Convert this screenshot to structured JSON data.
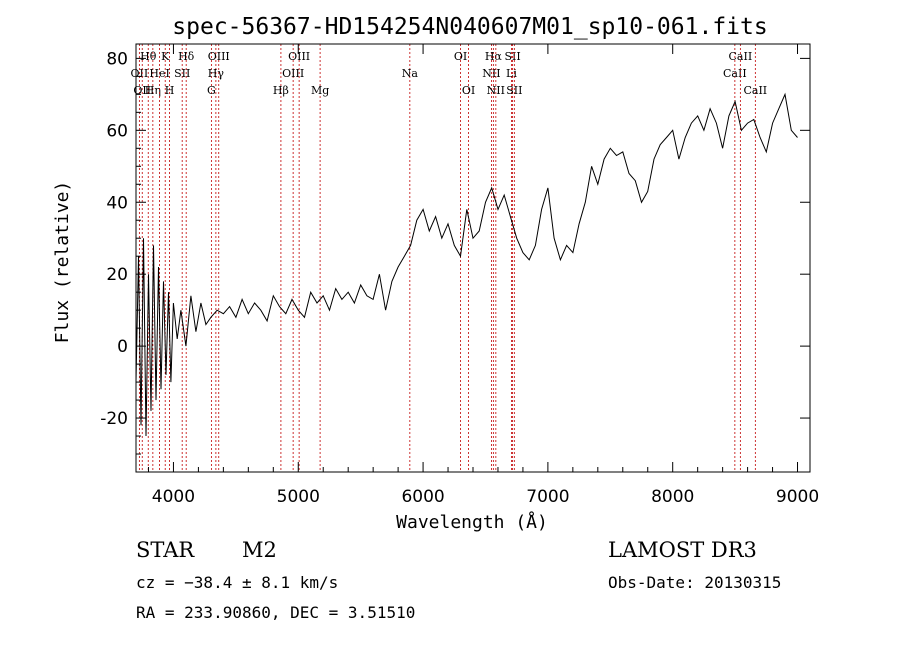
{
  "chart_data": {
    "type": "line",
    "title": "spec-56367-HD154254N040607M01_sp10-061.fits",
    "xlabel": "Wavelength (Å)",
    "ylabel": "Flux (relative)",
    "xlim": [
      3700,
      9100
    ],
    "ylim": [
      -35,
      84
    ],
    "xticks": [
      4000,
      5000,
      6000,
      7000,
      8000,
      9000
    ],
    "yticks": [
      -20,
      0,
      20,
      40,
      60,
      80
    ],
    "grid": false,
    "line_color": "#000000",
    "marker_color": "#c00000",
    "series": [
      {
        "x": [
          3700,
          3720,
          3740,
          3760,
          3780,
          3800,
          3820,
          3840,
          3860,
          3880,
          3900,
          3920,
          3940,
          3960,
          3980,
          4000,
          4030,
          4060,
          4100,
          4140,
          4180,
          4220,
          4260,
          4300,
          4350,
          4400,
          4450,
          4500,
          4550,
          4600,
          4650,
          4700,
          4750,
          4800,
          4850,
          4900,
          4950,
          5000,
          5050,
          5100,
          5150,
          5200,
          5250,
          5300,
          5350,
          5400,
          5450,
          5500,
          5550,
          5600,
          5650,
          5700,
          5750,
          5800,
          5850,
          5900,
          5950,
          6000,
          6050,
          6100,
          6150,
          6200,
          6250,
          6300,
          6350,
          6400,
          6450,
          6500,
          6550,
          6600,
          6650,
          6700,
          6750,
          6800,
          6850,
          6900,
          6950,
          7000,
          7050,
          7100,
          7150,
          7200,
          7250,
          7300,
          7350,
          7400,
          7450,
          7500,
          7550,
          7600,
          7650,
          7700,
          7750,
          7800,
          7850,
          7900,
          7950,
          8000,
          8050,
          8100,
          8150,
          8200,
          8250,
          8300,
          8350,
          8400,
          8450,
          8500,
          8550,
          8600,
          8650,
          8700,
          8750,
          8800,
          8850,
          8900,
          8950,
          9000
        ],
        "y": [
          -10,
          25,
          -22,
          30,
          -25,
          20,
          -18,
          28,
          -15,
          22,
          -12,
          18,
          -8,
          15,
          -10,
          12,
          2,
          10,
          0,
          14,
          4,
          12,
          6,
          8,
          10,
          9,
          11,
          8,
          13,
          9,
          12,
          10,
          7,
          14,
          11,
          9,
          13,
          10,
          8,
          15,
          12,
          14,
          10,
          16,
          13,
          15,
          12,
          17,
          14,
          13,
          20,
          10,
          18,
          22,
          25,
          28,
          35,
          38,
          32,
          36,
          30,
          34,
          28,
          25,
          38,
          30,
          32,
          40,
          44,
          38,
          42,
          36,
          30,
          26,
          24,
          28,
          38,
          44,
          30,
          24,
          28,
          26,
          34,
          40,
          50,
          45,
          52,
          55,
          53,
          54,
          48,
          46,
          40,
          43,
          52,
          56,
          58,
          60,
          52,
          58,
          62,
          64,
          60,
          66,
          62,
          55,
          64,
          68,
          60,
          62,
          63,
          58,
          54,
          62,
          66,
          70,
          60,
          58
        ]
      }
    ],
    "line_markers": [
      {
        "wl": 3727,
        "label": "OII",
        "row": 2
      },
      {
        "wl": 3750,
        "label": "OII",
        "row": 3
      },
      {
        "wl": 3798,
        "label": "Hθ",
        "row": 1
      },
      {
        "wl": 3835,
        "label": "Hη",
        "row": 3
      },
      {
        "wl": 3889,
        "label": "HeI",
        "row": 2
      },
      {
        "wl": 3934,
        "label": "K",
        "row": 1
      },
      {
        "wl": 3969,
        "label": "H",
        "row": 3
      },
      {
        "wl": 4070,
        "label": "SII",
        "row": 2
      },
      {
        "wl": 4102,
        "label": "Hδ",
        "row": 1
      },
      {
        "wl": 4304,
        "label": "G",
        "row": 3
      },
      {
        "wl": 4340,
        "label": "Hγ",
        "row": 2
      },
      {
        "wl": 4363,
        "label": "OIII",
        "row": 1
      },
      {
        "wl": 4861,
        "label": "Hβ",
        "row": 3
      },
      {
        "wl": 4959,
        "label": "OIII",
        "row": 2
      },
      {
        "wl": 5007,
        "label": "OIII",
        "row": 1
      },
      {
        "wl": 5175,
        "label": "Mg",
        "row": 3
      },
      {
        "wl": 5894,
        "label": "Na",
        "row": 2
      },
      {
        "wl": 6300,
        "label": "OI",
        "row": 1
      },
      {
        "wl": 6364,
        "label": "OI",
        "row": 3
      },
      {
        "wl": 6548,
        "label": "NII",
        "row": 2
      },
      {
        "wl": 6563,
        "label": "Hα",
        "row": 1
      },
      {
        "wl": 6583,
        "label": "NII",
        "row": 3
      },
      {
        "wl": 6708,
        "label": "Li",
        "row": 2
      },
      {
        "wl": 6717,
        "label": "SII",
        "row": 1
      },
      {
        "wl": 6731,
        "label": "SII",
        "row": 3
      },
      {
        "wl": 8498,
        "label": "CaII",
        "row": 2
      },
      {
        "wl": 8542,
        "label": "CaII",
        "row": 1
      },
      {
        "wl": 8662,
        "label": "CaII",
        "row": 3
      }
    ]
  },
  "info": {
    "object_type": "STAR",
    "subclass": "M2",
    "cz": "cz = −38.4 ± 8.1 km/s",
    "coords": "RA = 233.90860, DEC =    3.51510",
    "survey": "LAMOST DR3",
    "obs_date": "Obs-Date: 20130315"
  }
}
